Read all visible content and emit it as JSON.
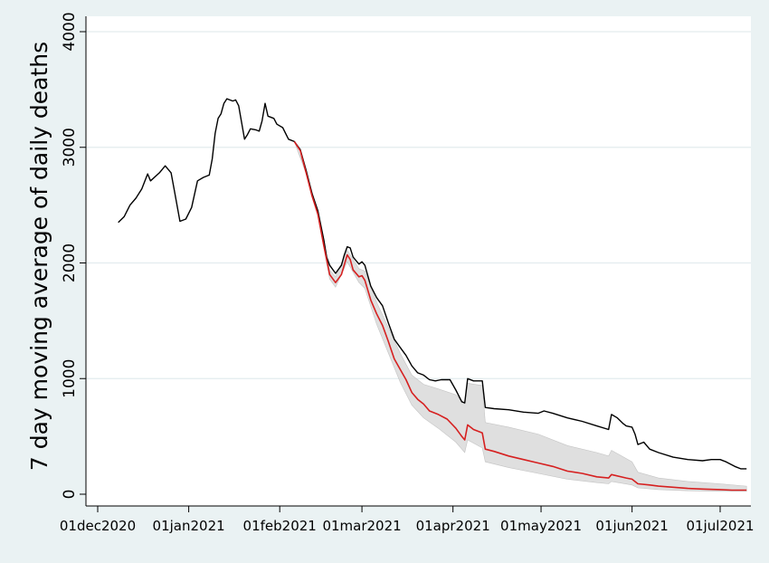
{
  "chart_data": {
    "type": "line",
    "title": "",
    "xlabel": "",
    "ylabel": "7 day moving average of daily deaths",
    "ylim": [
      0,
      4000
    ],
    "xlim": [
      "2020-11-28",
      "2021-07-12"
    ],
    "grid": true,
    "legend": "none",
    "x_ticks": [
      {
        "date": "2020-12-01",
        "label": "01dec2020"
      },
      {
        "date": "2021-01-01",
        "label": "01jan2021"
      },
      {
        "date": "2021-02-01",
        "label": "01feb2021"
      },
      {
        "date": "2021-03-01",
        "label": "01mar2021"
      },
      {
        "date": "2021-04-01",
        "label": "01apr2021"
      },
      {
        "date": "2021-05-01",
        "label": "01may2021"
      },
      {
        "date": "2021-06-01",
        "label": "01jun2021"
      },
      {
        "date": "2021-07-01",
        "label": "01jul2021"
      }
    ],
    "y_ticks": [
      {
        "value": 0,
        "label": "0"
      },
      {
        "value": 1000,
        "label": "1000"
      },
      {
        "value": 2000,
        "label": "2000"
      },
      {
        "value": 3000,
        "label": "3000"
      },
      {
        "value": 4000,
        "label": "4000"
      }
    ],
    "series": [
      {
        "kind": "line",
        "color": "#000000",
        "points": [
          [
            "2020-12-08",
            2350
          ],
          [
            "2020-12-10",
            2400
          ],
          [
            "2020-12-12",
            2500
          ],
          [
            "2020-12-14",
            2560
          ],
          [
            "2020-12-16",
            2640
          ],
          [
            "2020-12-18",
            2770
          ],
          [
            "2020-12-19",
            2710
          ],
          [
            "2020-12-22",
            2780
          ],
          [
            "2020-12-24",
            2840
          ],
          [
            "2020-12-26",
            2780
          ],
          [
            "2020-12-27",
            2640
          ],
          [
            "2020-12-29",
            2360
          ],
          [
            "2020-12-31",
            2380
          ],
          [
            "2021-01-02",
            2480
          ],
          [
            "2021-01-04",
            2710
          ],
          [
            "2021-01-06",
            2740
          ],
          [
            "2021-01-08",
            2760
          ],
          [
            "2021-01-09",
            2900
          ],
          [
            "2021-01-10",
            3120
          ],
          [
            "2021-01-11",
            3250
          ],
          [
            "2021-01-12",
            3290
          ],
          [
            "2021-01-13",
            3380
          ],
          [
            "2021-01-14",
            3420
          ],
          [
            "2021-01-16",
            3400
          ],
          [
            "2021-01-17",
            3410
          ],
          [
            "2021-01-18",
            3360
          ],
          [
            "2021-01-20",
            3070
          ],
          [
            "2021-01-21",
            3110
          ],
          [
            "2021-01-22",
            3160
          ],
          [
            "2021-01-24",
            3150
          ],
          [
            "2021-01-25",
            3140
          ],
          [
            "2021-01-26",
            3230
          ],
          [
            "2021-01-27",
            3380
          ],
          [
            "2021-01-28",
            3270
          ],
          [
            "2021-01-30",
            3250
          ],
          [
            "2021-01-31",
            3200
          ],
          [
            "2021-02-02",
            3170
          ],
          [
            "2021-02-04",
            3070
          ],
          [
            "2021-02-06",
            3050
          ],
          [
            "2021-02-08",
            2980
          ],
          [
            "2021-02-10",
            2800
          ],
          [
            "2021-02-12",
            2600
          ],
          [
            "2021-02-14",
            2450
          ],
          [
            "2021-02-16",
            2200
          ],
          [
            "2021-02-17",
            2050
          ],
          [
            "2021-02-18",
            1980
          ],
          [
            "2021-02-20",
            1910
          ],
          [
            "2021-02-22",
            1980
          ],
          [
            "2021-02-23",
            2070
          ],
          [
            "2021-02-24",
            2140
          ],
          [
            "2021-02-25",
            2130
          ],
          [
            "2021-02-26",
            2050
          ],
          [
            "2021-02-28",
            1990
          ],
          [
            "2021-03-01",
            2010
          ],
          [
            "2021-03-02",
            1980
          ],
          [
            "2021-03-04",
            1800
          ],
          [
            "2021-03-06",
            1700
          ],
          [
            "2021-03-08",
            1630
          ],
          [
            "2021-03-10",
            1480
          ],
          [
            "2021-03-12",
            1340
          ],
          [
            "2021-03-14",
            1270
          ],
          [
            "2021-03-16",
            1200
          ],
          [
            "2021-03-18",
            1110
          ],
          [
            "2021-03-20",
            1050
          ],
          [
            "2021-03-22",
            1030
          ],
          [
            "2021-03-24",
            990
          ],
          [
            "2021-03-26",
            980
          ],
          [
            "2021-03-28",
            990
          ],
          [
            "2021-03-31",
            990
          ],
          [
            "2021-04-02",
            900
          ],
          [
            "2021-04-04",
            800
          ],
          [
            "2021-04-05",
            790
          ],
          [
            "2021-04-06",
            1000
          ],
          [
            "2021-04-08",
            980
          ],
          [
            "2021-04-11",
            980
          ],
          [
            "2021-04-12",
            750
          ],
          [
            "2021-04-15",
            740
          ],
          [
            "2021-04-20",
            730
          ],
          [
            "2021-04-25",
            710
          ],
          [
            "2021-04-30",
            700
          ],
          [
            "2021-05-02",
            720
          ],
          [
            "2021-05-05",
            700
          ],
          [
            "2021-05-10",
            660
          ],
          [
            "2021-05-15",
            630
          ],
          [
            "2021-05-20",
            590
          ],
          [
            "2021-05-24",
            560
          ],
          [
            "2021-05-25",
            690
          ],
          [
            "2021-05-27",
            660
          ],
          [
            "2021-05-29",
            610
          ],
          [
            "2021-05-30",
            590
          ],
          [
            "2021-06-01",
            580
          ],
          [
            "2021-06-02",
            520
          ],
          [
            "2021-06-03",
            430
          ],
          [
            "2021-06-05",
            450
          ],
          [
            "2021-06-07",
            390
          ],
          [
            "2021-06-10",
            360
          ],
          [
            "2021-06-15",
            320
          ],
          [
            "2021-06-20",
            300
          ],
          [
            "2021-06-25",
            290
          ],
          [
            "2021-06-28",
            300
          ],
          [
            "2021-07-01",
            300
          ],
          [
            "2021-07-03",
            280
          ],
          [
            "2021-07-06",
            240
          ],
          [
            "2021-07-08",
            220
          ],
          [
            "2021-07-10",
            220
          ]
        ]
      },
      {
        "kind": "line",
        "color": "#d62020",
        "points": [
          [
            "2021-02-06",
            3050
          ],
          [
            "2021-02-08",
            2970
          ],
          [
            "2021-02-10",
            2780
          ],
          [
            "2021-02-12",
            2580
          ],
          [
            "2021-02-14",
            2420
          ],
          [
            "2021-02-16",
            2150
          ],
          [
            "2021-02-18",
            1900
          ],
          [
            "2021-02-20",
            1830
          ],
          [
            "2021-02-22",
            1900
          ],
          [
            "2021-02-24",
            2070
          ],
          [
            "2021-02-25",
            2030
          ],
          [
            "2021-02-26",
            1940
          ],
          [
            "2021-02-28",
            1880
          ],
          [
            "2021-03-01",
            1890
          ],
          [
            "2021-03-02",
            1850
          ],
          [
            "2021-03-04",
            1680
          ],
          [
            "2021-03-06",
            1560
          ],
          [
            "2021-03-08",
            1460
          ],
          [
            "2021-03-10",
            1320
          ],
          [
            "2021-03-12",
            1170
          ],
          [
            "2021-03-14",
            1080
          ],
          [
            "2021-03-16",
            990
          ],
          [
            "2021-03-18",
            880
          ],
          [
            "2021-03-20",
            820
          ],
          [
            "2021-03-22",
            780
          ],
          [
            "2021-03-24",
            720
          ],
          [
            "2021-03-27",
            690
          ],
          [
            "2021-03-30",
            650
          ],
          [
            "2021-04-02",
            570
          ],
          [
            "2021-04-04",
            500
          ],
          [
            "2021-04-05",
            470
          ],
          [
            "2021-04-06",
            600
          ],
          [
            "2021-04-08",
            560
          ],
          [
            "2021-04-11",
            530
          ],
          [
            "2021-04-12",
            390
          ],
          [
            "2021-04-15",
            370
          ],
          [
            "2021-04-20",
            330
          ],
          [
            "2021-04-25",
            300
          ],
          [
            "2021-04-30",
            270
          ],
          [
            "2021-05-05",
            240
          ],
          [
            "2021-05-10",
            200
          ],
          [
            "2021-05-15",
            180
          ],
          [
            "2021-05-20",
            150
          ],
          [
            "2021-05-24",
            140
          ],
          [
            "2021-05-25",
            170
          ],
          [
            "2021-05-30",
            140
          ],
          [
            "2021-06-01",
            130
          ],
          [
            "2021-06-03",
            90
          ],
          [
            "2021-06-07",
            80
          ],
          [
            "2021-06-10",
            70
          ],
          [
            "2021-06-15",
            60
          ],
          [
            "2021-06-20",
            50
          ],
          [
            "2021-06-25",
            45
          ],
          [
            "2021-07-01",
            40
          ],
          [
            "2021-07-05",
            35
          ],
          [
            "2021-07-10",
            35
          ]
        ]
      }
    ],
    "band": {
      "color": "#d4d4d4",
      "points": [
        [
          "2021-02-06",
          3050,
          3050
        ],
        [
          "2021-02-10",
          2770,
          2800
        ],
        [
          "2021-02-14",
          2400,
          2440
        ],
        [
          "2021-02-18",
          1860,
          1940
        ],
        [
          "2021-02-20",
          1790,
          1880
        ],
        [
          "2021-02-24",
          2010,
          2110
        ],
        [
          "2021-02-28",
          1830,
          1950
        ],
        [
          "2021-03-02",
          1780,
          1930
        ],
        [
          "2021-03-06",
          1470,
          1660
        ],
        [
          "2021-03-10",
          1220,
          1440
        ],
        [
          "2021-03-14",
          970,
          1220
        ],
        [
          "2021-03-18",
          770,
          1030
        ],
        [
          "2021-03-22",
          660,
          950
        ],
        [
          "2021-03-27",
          570,
          910
        ],
        [
          "2021-04-02",
          450,
          860
        ],
        [
          "2021-04-05",
          360,
          780
        ],
        [
          "2021-04-06",
          470,
          960
        ],
        [
          "2021-04-11",
          400,
          940
        ],
        [
          "2021-04-12",
          280,
          620
        ],
        [
          "2021-04-20",
          230,
          580
        ],
        [
          "2021-04-30",
          180,
          520
        ],
        [
          "2021-05-10",
          130,
          420
        ],
        [
          "2021-05-20",
          100,
          360
        ],
        [
          "2021-05-24",
          90,
          330
        ],
        [
          "2021-05-25",
          110,
          380
        ],
        [
          "2021-06-01",
          80,
          280
        ],
        [
          "2021-06-03",
          55,
          190
        ],
        [
          "2021-06-10",
          40,
          140
        ],
        [
          "2021-06-20",
          30,
          110
        ],
        [
          "2021-07-01",
          25,
          90
        ],
        [
          "2021-07-10",
          25,
          70
        ]
      ]
    }
  }
}
